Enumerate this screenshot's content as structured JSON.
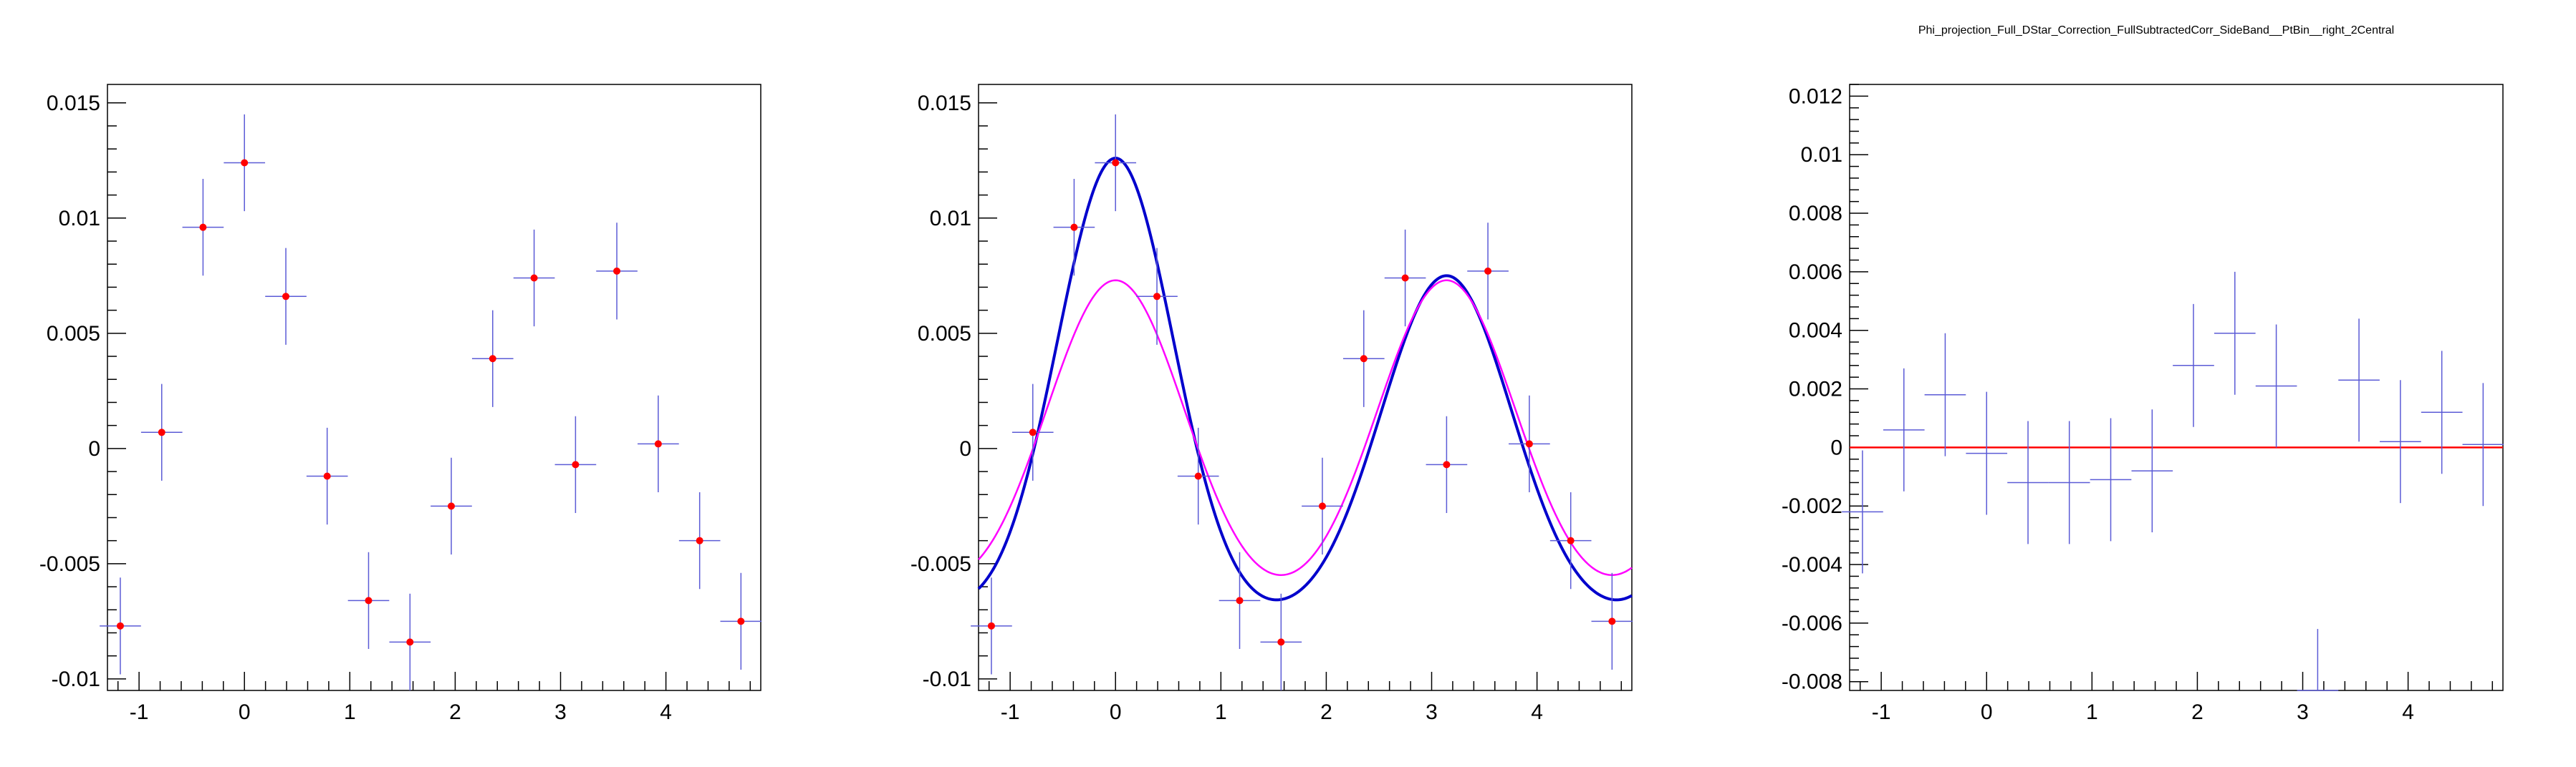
{
  "canvas_title": "Phi_projection_Full_DStar_Correction_FullSubtractedCorr_SideBand__PtBin__right_2Central",
  "colors": {
    "points": "#ff0000",
    "errors": "#5b5bd6",
    "fit_total": "#0000cc",
    "fit_component": "#ff00ff",
    "zero_line": "#ff0000"
  },
  "chart_data": [
    {
      "type": "scatter",
      "title": "",
      "xlim": [
        -1.3,
        4.9
      ],
      "ylim": [
        -0.0105,
        0.0158
      ],
      "xbin_half_width": 0.196,
      "xticks": [
        "-1",
        "0",
        "1",
        "2",
        "3",
        "4"
      ],
      "xtick_values": [
        -1,
        0,
        1,
        2,
        3,
        4
      ],
      "yticks": [
        "-0.01",
        "-0.005",
        "0",
        "0.005",
        "0.01",
        "0.015"
      ],
      "ytick_values": [
        -0.01,
        -0.005,
        0,
        0.005,
        0.01,
        0.015
      ],
      "series": [
        {
          "marker": "dot",
          "x": [
            -1.178,
            -0.785,
            -0.393,
            0.0,
            0.393,
            0.785,
            1.178,
            1.571,
            1.963,
            2.356,
            2.749,
            3.142,
            3.534,
            3.927,
            4.32,
            4.712
          ],
          "y": [
            -0.0077,
            0.0007,
            0.0096,
            0.0124,
            0.0066,
            -0.0012,
            -0.0066,
            -0.0084,
            -0.0025,
            0.0039,
            0.0074,
            -0.0007,
            0.0077,
            0.0002,
            -0.004,
            -0.0075
          ],
          "yerr": [
            0.0021,
            0.0021,
            0.0021,
            0.0021,
            0.0021,
            0.0021,
            0.0021,
            0.0021,
            0.0021,
            0.0021,
            0.0021,
            0.0021,
            0.0021,
            0.0021,
            0.0021,
            0.0021
          ]
        }
      ]
    },
    {
      "type": "scatter",
      "title": "",
      "xlim": [
        -1.3,
        4.9
      ],
      "ylim": [
        -0.0105,
        0.0158
      ],
      "xbin_half_width": 0.196,
      "xticks": [
        "-1",
        "0",
        "1",
        "2",
        "3",
        "4"
      ],
      "xtick_values": [
        -1,
        0,
        1,
        2,
        3,
        4
      ],
      "yticks": [
        "-0.01",
        "-0.005",
        "0",
        "0.005",
        "0.01",
        "0.015"
      ],
      "ytick_values": [
        -0.01,
        -0.005,
        0,
        0.005,
        0.01,
        0.015
      ],
      "series": [
        {
          "marker": "dot",
          "x": [
            -1.178,
            -0.785,
            -0.393,
            0.0,
            0.393,
            0.785,
            1.178,
            1.571,
            1.963,
            2.356,
            2.749,
            3.142,
            3.534,
            3.927,
            4.32,
            4.712
          ],
          "y": [
            -0.0077,
            0.0007,
            0.0096,
            0.0124,
            0.0066,
            -0.0012,
            -0.0066,
            -0.0084,
            -0.0025,
            0.0039,
            0.0074,
            -0.0007,
            0.0077,
            0.0002,
            -0.004,
            -0.0075
          ],
          "yerr": [
            0.0021,
            0.0021,
            0.0021,
            0.0021,
            0.0021,
            0.0021,
            0.0021,
            0.0021,
            0.0021,
            0.0021,
            0.0021,
            0.0021,
            0.0021,
            0.0021,
            0.0021,
            0.0021
          ]
        }
      ],
      "fits": [
        {
          "color_key": "fit_total",
          "curve": "gaussian-sum",
          "baseline": -0.0075,
          "peaks": [
            {
              "mean": 0.0,
              "amplitude": 0.0201,
              "sigma": 0.55
            },
            {
              "mean": 3.1416,
              "amplitude": 0.015,
              "sigma": 0.62
            }
          ]
        },
        {
          "color_key": "fit_component",
          "curve": "gaussian-sum",
          "baseline": -0.0072,
          "peaks": [
            {
              "mean": 0.0,
              "amplitude": 0.0145,
              "sigma": 0.66
            },
            {
              "mean": 3.1416,
              "amplitude": 0.0145,
              "sigma": 0.66
            }
          ]
        }
      ]
    },
    {
      "type": "scatter",
      "title": "",
      "xlim": [
        -1.3,
        4.9
      ],
      "ylim": [
        -0.0083,
        0.0124
      ],
      "xbin_half_width": 0.196,
      "xticks": [
        "-1",
        "0",
        "1",
        "2",
        "3",
        "4"
      ],
      "xtick_values": [
        -1,
        0,
        1,
        2,
        3,
        4
      ],
      "yticks": [
        "-0.008",
        "-0.006",
        "-0.004",
        "-0.002",
        "0",
        "0.002",
        "0.004",
        "0.006",
        "0.008",
        "0.01",
        "0.012"
      ],
      "ytick_values": [
        -0.008,
        -0.006,
        -0.004,
        -0.002,
        0,
        0.002,
        0.004,
        0.006,
        0.008,
        0.01,
        0.012
      ],
      "series": [
        {
          "marker": "none",
          "x": [
            -1.178,
            -0.785,
            -0.393,
            0.0,
            0.393,
            0.785,
            1.178,
            1.571,
            1.963,
            2.356,
            2.749,
            3.142,
            3.534,
            3.927,
            4.32,
            4.712
          ],
          "y": [
            -0.0022,
            0.0006,
            0.0018,
            -0.0002,
            -0.0012,
            -0.0012,
            -0.0011,
            -0.0008,
            0.0028,
            0.0039,
            0.0021,
            -0.0083,
            0.0023,
            0.0002,
            0.0012,
            0.0001
          ],
          "yerr": [
            0.0021,
            0.0021,
            0.0021,
            0.0021,
            0.0021,
            0.0021,
            0.0021,
            0.0021,
            0.0021,
            0.0021,
            0.0021,
            0.0021,
            0.0021,
            0.0021,
            0.0021,
            0.0021
          ]
        }
      ],
      "reference_line_y": 0
    }
  ]
}
